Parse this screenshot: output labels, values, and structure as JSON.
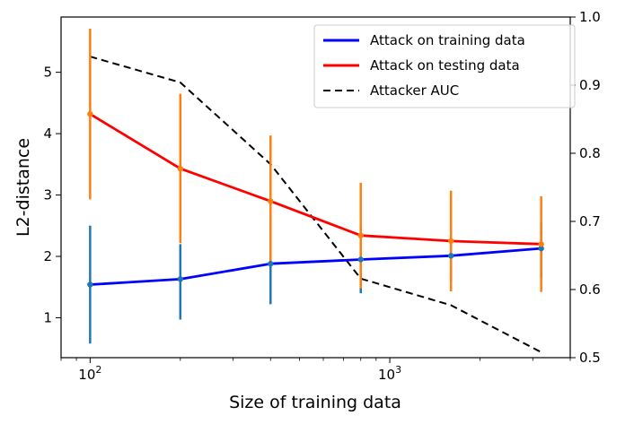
{
  "chart_data": {
    "type": "line",
    "title": "",
    "xlabel": "Size of training data",
    "ylabel": "L2-distance",
    "y2label": "",
    "x_scale": "log",
    "xlim": [
      80,
      4000
    ],
    "ylim": [
      0.35,
      5.9
    ],
    "y2lim": [
      0.5,
      1.0
    ],
    "x_ticks": [
      {
        "value": 100,
        "label": "10",
        "exp": "2"
      },
      {
        "value": 1000,
        "label": "10",
        "exp": "3"
      }
    ],
    "y_ticks": [
      {
        "value": 1,
        "label": "1"
      },
      {
        "value": 2,
        "label": "2"
      },
      {
        "value": 3,
        "label": "3"
      },
      {
        "value": 4,
        "label": "4"
      },
      {
        "value": 5,
        "label": "5"
      }
    ],
    "y2_ticks": [
      {
        "value": 0.5,
        "label": "0.5"
      },
      {
        "value": 0.6,
        "label": "0.6"
      },
      {
        "value": 0.7,
        "label": "0.7"
      },
      {
        "value": 0.8,
        "label": "0.8"
      },
      {
        "value": 0.9,
        "label": "0.9"
      },
      {
        "value": 1.0,
        "label": "1.0"
      }
    ],
    "grid": false,
    "legend_position": "top-right",
    "x": [
      100,
      200,
      400,
      800,
      1600,
      3200
    ],
    "series": [
      {
        "name": "Attack on training data",
        "axis": "left",
        "color": "#0000ff",
        "errbar_color": "#1f77b4",
        "values": [
          1.54,
          1.63,
          1.88,
          1.95,
          2.01,
          2.13
        ],
        "err_low": [
          0.58,
          0.97,
          1.22,
          1.4,
          1.6,
          1.65
        ],
        "err_high": [
          2.5,
          2.2,
          2.55,
          2.5,
          2.4,
          2.55
        ]
      },
      {
        "name": "Attack on testing data",
        "axis": "left",
        "color": "#ff0000",
        "errbar_color": "#ff7f0e",
        "values": [
          4.32,
          3.43,
          2.9,
          2.34,
          2.25,
          2.2
        ],
        "err_low": [
          2.93,
          2.22,
          1.84,
          1.48,
          1.43,
          1.42
        ],
        "err_high": [
          5.71,
          4.65,
          3.97,
          3.2,
          3.07,
          2.98
        ]
      },
      {
        "name": "Attacker AUC",
        "axis": "right",
        "color": "#000000",
        "dash": "8,5",
        "values": [
          0.942,
          0.904,
          0.784,
          0.616,
          0.577,
          0.508
        ]
      }
    ]
  }
}
